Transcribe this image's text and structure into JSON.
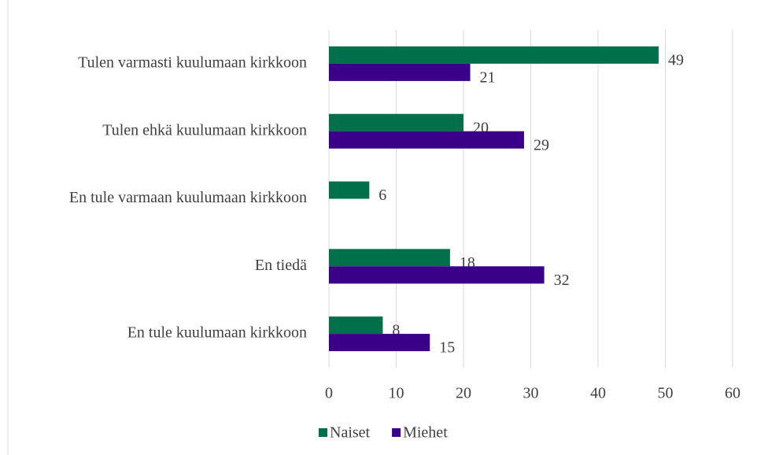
{
  "chart_data": {
    "type": "hbar",
    "categories": [
      "Tulen varmasti kuulumaan kirkkoon",
      "Tulen ehkä kuulumaan kirkkoon",
      "En tule varmaan kuulumaan kirkkoon",
      "En tiedä",
      "En tule kuulumaan kirkkoon"
    ],
    "series": [
      {
        "name": "Naiset",
        "color": "#00704a",
        "values": [
          49,
          20,
          6,
          18,
          8
        ]
      },
      {
        "name": "Miehet",
        "color": "#3a0088",
        "values": [
          21,
          29,
          null,
          32,
          15
        ]
      }
    ],
    "xlim": [
      0,
      60
    ],
    "xticks": [
      0,
      10,
      20,
      30,
      40,
      50,
      60
    ],
    "grid": true,
    "legend": "bottom"
  }
}
